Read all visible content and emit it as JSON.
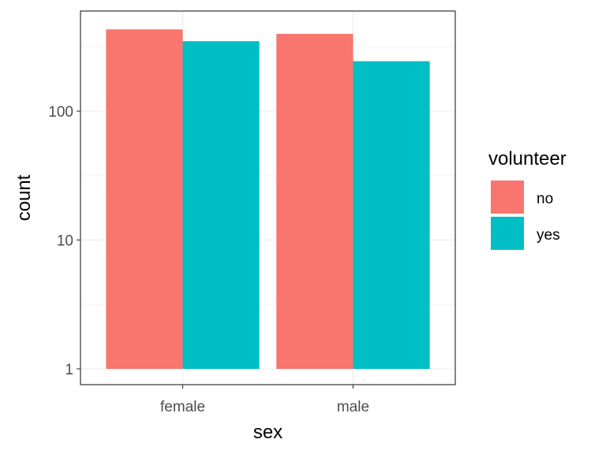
{
  "chart_data": {
    "type": "bar",
    "scale_y": "log10",
    "xlabel": "sex",
    "ylabel": "count",
    "categories": [
      "female",
      "male"
    ],
    "ylim": [
      1,
      550
    ],
    "yticks": [
      1,
      10,
      100
    ],
    "ytick_labels": [
      "1",
      "10",
      "100"
    ],
    "grid": true,
    "legend": {
      "title": "volunteer",
      "position": "right"
    },
    "series": [
      {
        "name": "no",
        "color": "#F8766D",
        "values": [
          431,
          398
        ]
      },
      {
        "name": "yes",
        "color": "#00BFC4",
        "values": [
          349,
          244
        ]
      }
    ]
  }
}
